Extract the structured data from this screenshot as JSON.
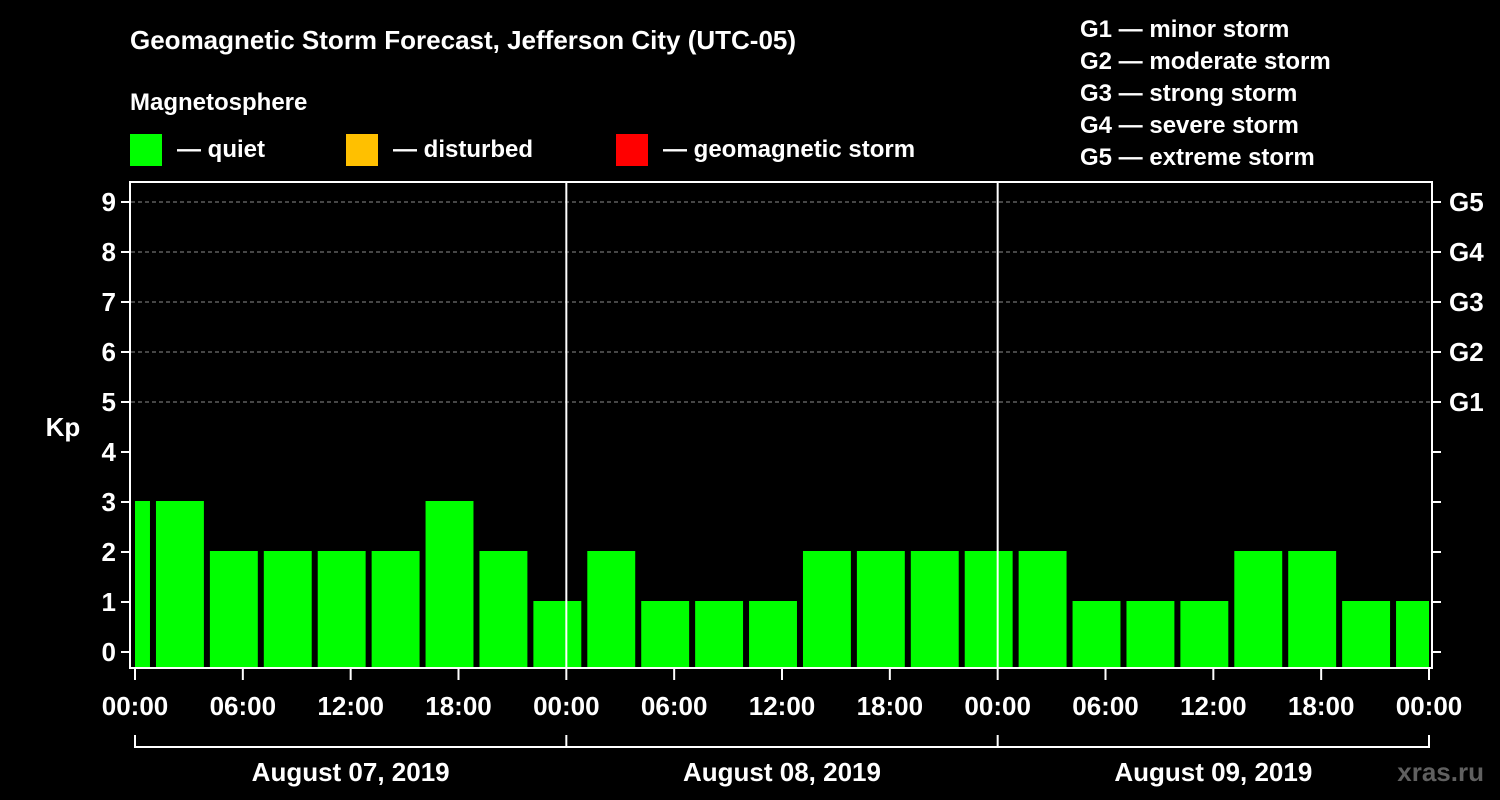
{
  "chart_data": {
    "type": "bar",
    "title": "Geomagnetic Storm Forecast, Jefferson City (UTC-05)",
    "legend_title": "Magnetosphere",
    "legend": [
      {
        "label": "— quiet",
        "color": "#00ff00"
      },
      {
        "label": "— disturbed",
        "color": "#ffc000"
      },
      {
        "label": "— geomagnetic storm",
        "color": "#ff0000"
      }
    ],
    "storm_scale": [
      "G1 — minor storm",
      "G2 — moderate storm",
      "G3 — strong storm",
      "G4 — severe storm",
      "G5 — extreme storm"
    ],
    "ylabel": "Kp",
    "ylim": [
      0,
      9
    ],
    "yticks": [
      0,
      1,
      2,
      3,
      4,
      5,
      6,
      7,
      8,
      9
    ],
    "right_ticks": [
      {
        "kp": 5,
        "label": "G1"
      },
      {
        "kp": 6,
        "label": "G2"
      },
      {
        "kp": 7,
        "label": "G3"
      },
      {
        "kp": 8,
        "label": "G4"
      },
      {
        "kp": 9,
        "label": "G5"
      }
    ],
    "xlim_hours": [
      0,
      72
    ],
    "xtick_labels": [
      "00:00",
      "06:00",
      "12:00",
      "18:00",
      "00:00",
      "06:00",
      "12:00",
      "18:00",
      "00:00",
      "06:00",
      "12:00",
      "18:00",
      "00:00"
    ],
    "days": [
      "August 07, 2019",
      "August 08, 2019",
      "August 09, 2019"
    ],
    "bars": [
      {
        "start": 0,
        "end": 1,
        "kp": 3
      },
      {
        "start": 1,
        "end": 4,
        "kp": 3
      },
      {
        "start": 4,
        "end": 7,
        "kp": 2
      },
      {
        "start": 7,
        "end": 10,
        "kp": 2
      },
      {
        "start": 10,
        "end": 13,
        "kp": 2
      },
      {
        "start": 13,
        "end": 16,
        "kp": 2
      },
      {
        "start": 16,
        "end": 19,
        "kp": 3
      },
      {
        "start": 19,
        "end": 22,
        "kp": 2
      },
      {
        "start": 22,
        "end": 25,
        "kp": 1
      },
      {
        "start": 25,
        "end": 28,
        "kp": 2
      },
      {
        "start": 28,
        "end": 31,
        "kp": 1
      },
      {
        "start": 31,
        "end": 34,
        "kp": 1
      },
      {
        "start": 34,
        "end": 37,
        "kp": 1
      },
      {
        "start": 37,
        "end": 40,
        "kp": 2
      },
      {
        "start": 40,
        "end": 43,
        "kp": 2
      },
      {
        "start": 43,
        "end": 46,
        "kp": 2
      },
      {
        "start": 46,
        "end": 49,
        "kp": 2
      },
      {
        "start": 49,
        "end": 52,
        "kp": 2
      },
      {
        "start": 52,
        "end": 55,
        "kp": 1
      },
      {
        "start": 55,
        "end": 58,
        "kp": 1
      },
      {
        "start": 58,
        "end": 61,
        "kp": 1
      },
      {
        "start": 61,
        "end": 64,
        "kp": 2
      },
      {
        "start": 64,
        "end": 67,
        "kp": 2
      },
      {
        "start": 67,
        "end": 70,
        "kp": 1
      },
      {
        "start": 70,
        "end": 72,
        "kp": 1
      }
    ],
    "watermark": "xras.ru"
  }
}
